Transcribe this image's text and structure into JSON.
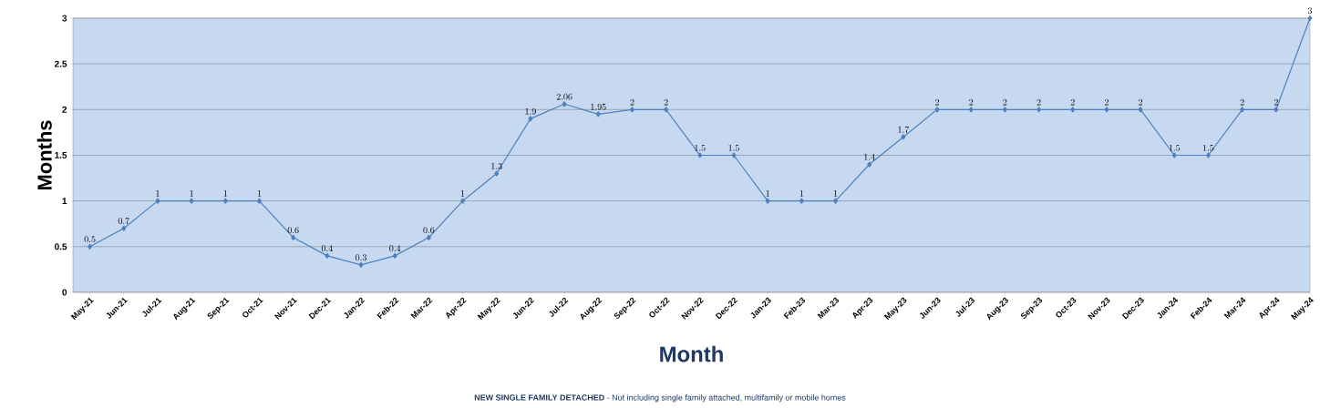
{
  "chart_data": {
    "type": "line",
    "xlabel": "Month",
    "ylabel": "Months",
    "categories": [
      "May-21",
      "Jun-21",
      "Jul-21",
      "Aug-21",
      "Sep-21",
      "Oct-21",
      "Nov-21",
      "Dec-21",
      "Jan-22",
      "Feb-22",
      "Mar-22",
      "Apr-22",
      "May-22",
      "Jun-22",
      "Jul-22",
      "Aug-22",
      "Sep-22",
      "Oct-22",
      "Nov-22",
      "Dec-22",
      "Jan-23",
      "Feb-23",
      "Mar-23",
      "Apr-23",
      "May-23",
      "Jun-23",
      "Jul-23",
      "Aug-23",
      "Sep-23",
      "Oct-23",
      "Nov-23",
      "Dec-23",
      "Jan-24",
      "Feb-24",
      "Mar-24",
      "Apr-24",
      "May-24"
    ],
    "values": [
      0.5,
      0.7,
      1,
      1,
      1,
      1,
      0.6,
      0.4,
      0.3,
      0.4,
      0.6,
      1,
      1.3,
      1.9,
      2.06,
      1.95,
      2,
      2,
      1.5,
      1.5,
      1,
      1,
      1,
      1.4,
      1.7,
      2,
      2,
      2,
      2,
      2,
      2,
      2,
      1.5,
      1.5,
      2,
      2,
      3
    ],
    "color": "#4f81bd",
    "ylim": [
      0,
      3
    ],
    "yticks": [
      0,
      0.5,
      1,
      1.5,
      2,
      2.5,
      3
    ],
    "grid": "y",
    "marker": "diamond",
    "line_style": "solid",
    "data_labels": true,
    "annotations": [
      "**NEW SINGLE FAMILY DETACHED** - Not including single family attached, multifamily or mobile homes"
    ]
  }
}
